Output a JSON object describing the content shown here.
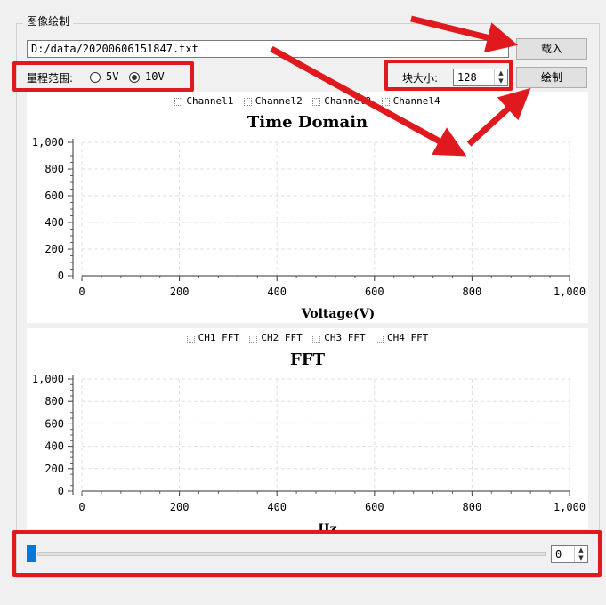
{
  "group_title": "图像绘制",
  "path_value": "D:/data/20200606151847.txt",
  "load_button": "载入",
  "draw_button": "绘制",
  "range": {
    "label": "量程范围:",
    "options": [
      "5V",
      "10V"
    ],
    "selected": "10V"
  },
  "block_size": {
    "label": "块大小:",
    "value": "128"
  },
  "slider": {
    "value": 0,
    "spin_value": "0"
  },
  "accent_color": "#0078d7",
  "annotation_color": "#e0191e",
  "chart_data": [
    {
      "type": "line",
      "title": "Time Domain",
      "xlabel": "Voltage(V)",
      "ylabel": "",
      "xlim": [
        0,
        1000
      ],
      "ylim": [
        0,
        1000
      ],
      "xticks": [
        "0",
        "200",
        "400",
        "600",
        "800",
        "1,000"
      ],
      "yticks": [
        "0",
        "200",
        "400",
        "600",
        "800",
        "1,000"
      ],
      "series": [
        {
          "name": "Channel1",
          "values": []
        },
        {
          "name": "Channel2",
          "values": []
        },
        {
          "name": "Channel3",
          "values": []
        },
        {
          "name": "Channel4",
          "values": []
        }
      ],
      "grid": true,
      "legend": "top"
    },
    {
      "type": "line",
      "title": "FFT",
      "xlabel": "Hz",
      "ylabel": "",
      "xlim": [
        0,
        1000
      ],
      "ylim": [
        0,
        1000
      ],
      "xticks": [
        "0",
        "200",
        "400",
        "600",
        "800",
        "1,000"
      ],
      "yticks": [
        "0",
        "200",
        "400",
        "600",
        "800",
        "1,000"
      ],
      "series": [
        {
          "name": "CH1 FFT",
          "values": []
        },
        {
          "name": "CH2 FFT",
          "values": []
        },
        {
          "name": "CH3 FFT",
          "values": []
        },
        {
          "name": "CH4 FFT",
          "values": []
        }
      ],
      "grid": true,
      "legend": "top"
    }
  ]
}
